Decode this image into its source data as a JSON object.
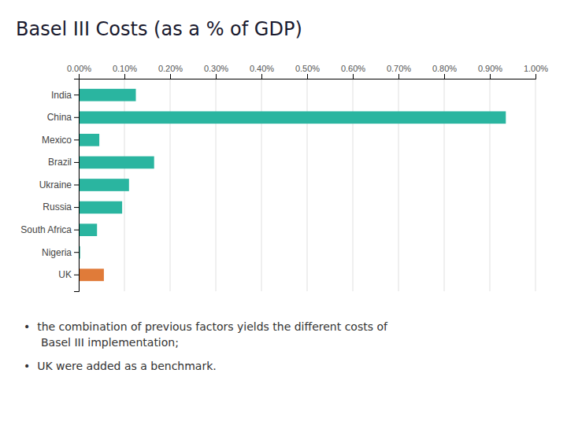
{
  "chart_data": {
    "type": "bar",
    "orientation": "horizontal",
    "title": "Basel III Costs (as a % of GDP)",
    "categories": [
      "India",
      "China",
      "Mexico",
      "Brazil",
      "Ukraine",
      "Russia",
      "South Africa",
      "Nigeria",
      "UK"
    ],
    "values": [
      0.125,
      0.935,
      0.045,
      0.165,
      0.11,
      0.095,
      0.04,
      0.003,
      0.055
    ],
    "colors": [
      "#2ab5a0",
      "#2ab5a0",
      "#2ab5a0",
      "#2ab5a0",
      "#2ab5a0",
      "#2ab5a0",
      "#2ab5a0",
      "#2ab5a0",
      "#e07b39"
    ],
    "xlim": [
      0,
      1.0
    ],
    "xticks": [
      {
        "value": 0,
        "label": "0.00%"
      },
      {
        "value": 0.1,
        "label": "0.10%"
      },
      {
        "value": 0.2,
        "label": "0.20%"
      },
      {
        "value": 0.3,
        "label": "0.30%"
      },
      {
        "value": 0.4,
        "label": "0.40%"
      },
      {
        "value": 0.5,
        "label": "0.50%"
      },
      {
        "value": 0.6,
        "label": "0.60%"
      },
      {
        "value": 0.7,
        "label": "0.70%"
      },
      {
        "value": 0.8,
        "label": "0.80%"
      },
      {
        "value": 0.9,
        "label": "0.90%"
      },
      {
        "value": 1.0,
        "label": "1.00%"
      }
    ],
    "grid": true,
    "annotations": [
      "•  the combination of previous factors yields the different costs of",
      "Basel III implementation;",
      "•  UK were added as a benchmark."
    ]
  }
}
